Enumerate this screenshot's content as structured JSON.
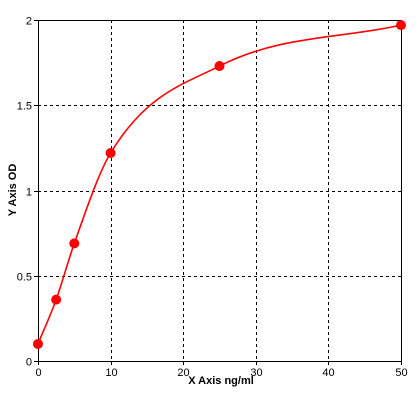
{
  "chart_data": {
    "type": "scatter",
    "xlabel": "X Axis ng/ml",
    "ylabel": "Y Axis OD",
    "xlim": [
      0,
      50
    ],
    "ylim": [
      0,
      2
    ],
    "x_ticks": [
      0,
      10,
      20,
      30,
      40,
      50
    ],
    "y_ticks": [
      0,
      0.5,
      1,
      1.5,
      2
    ],
    "x_tick_labels": [
      "0",
      "10",
      "20",
      "30",
      "40",
      "50"
    ],
    "y_tick_labels": [
      "0",
      "0.5",
      "1",
      "1.5",
      "2"
    ],
    "grid": true,
    "series": [
      {
        "points": [
          {
            "x": 0,
            "y": 0.1
          },
          {
            "x": 2.5,
            "y": 0.36
          },
          {
            "x": 5,
            "y": 0.69
          },
          {
            "x": 10,
            "y": 1.22
          },
          {
            "x": 25,
            "y": 1.73
          },
          {
            "x": 50,
            "y": 1.97
          }
        ],
        "color": "#ff0000",
        "fit_curve": true
      }
    ]
  }
}
